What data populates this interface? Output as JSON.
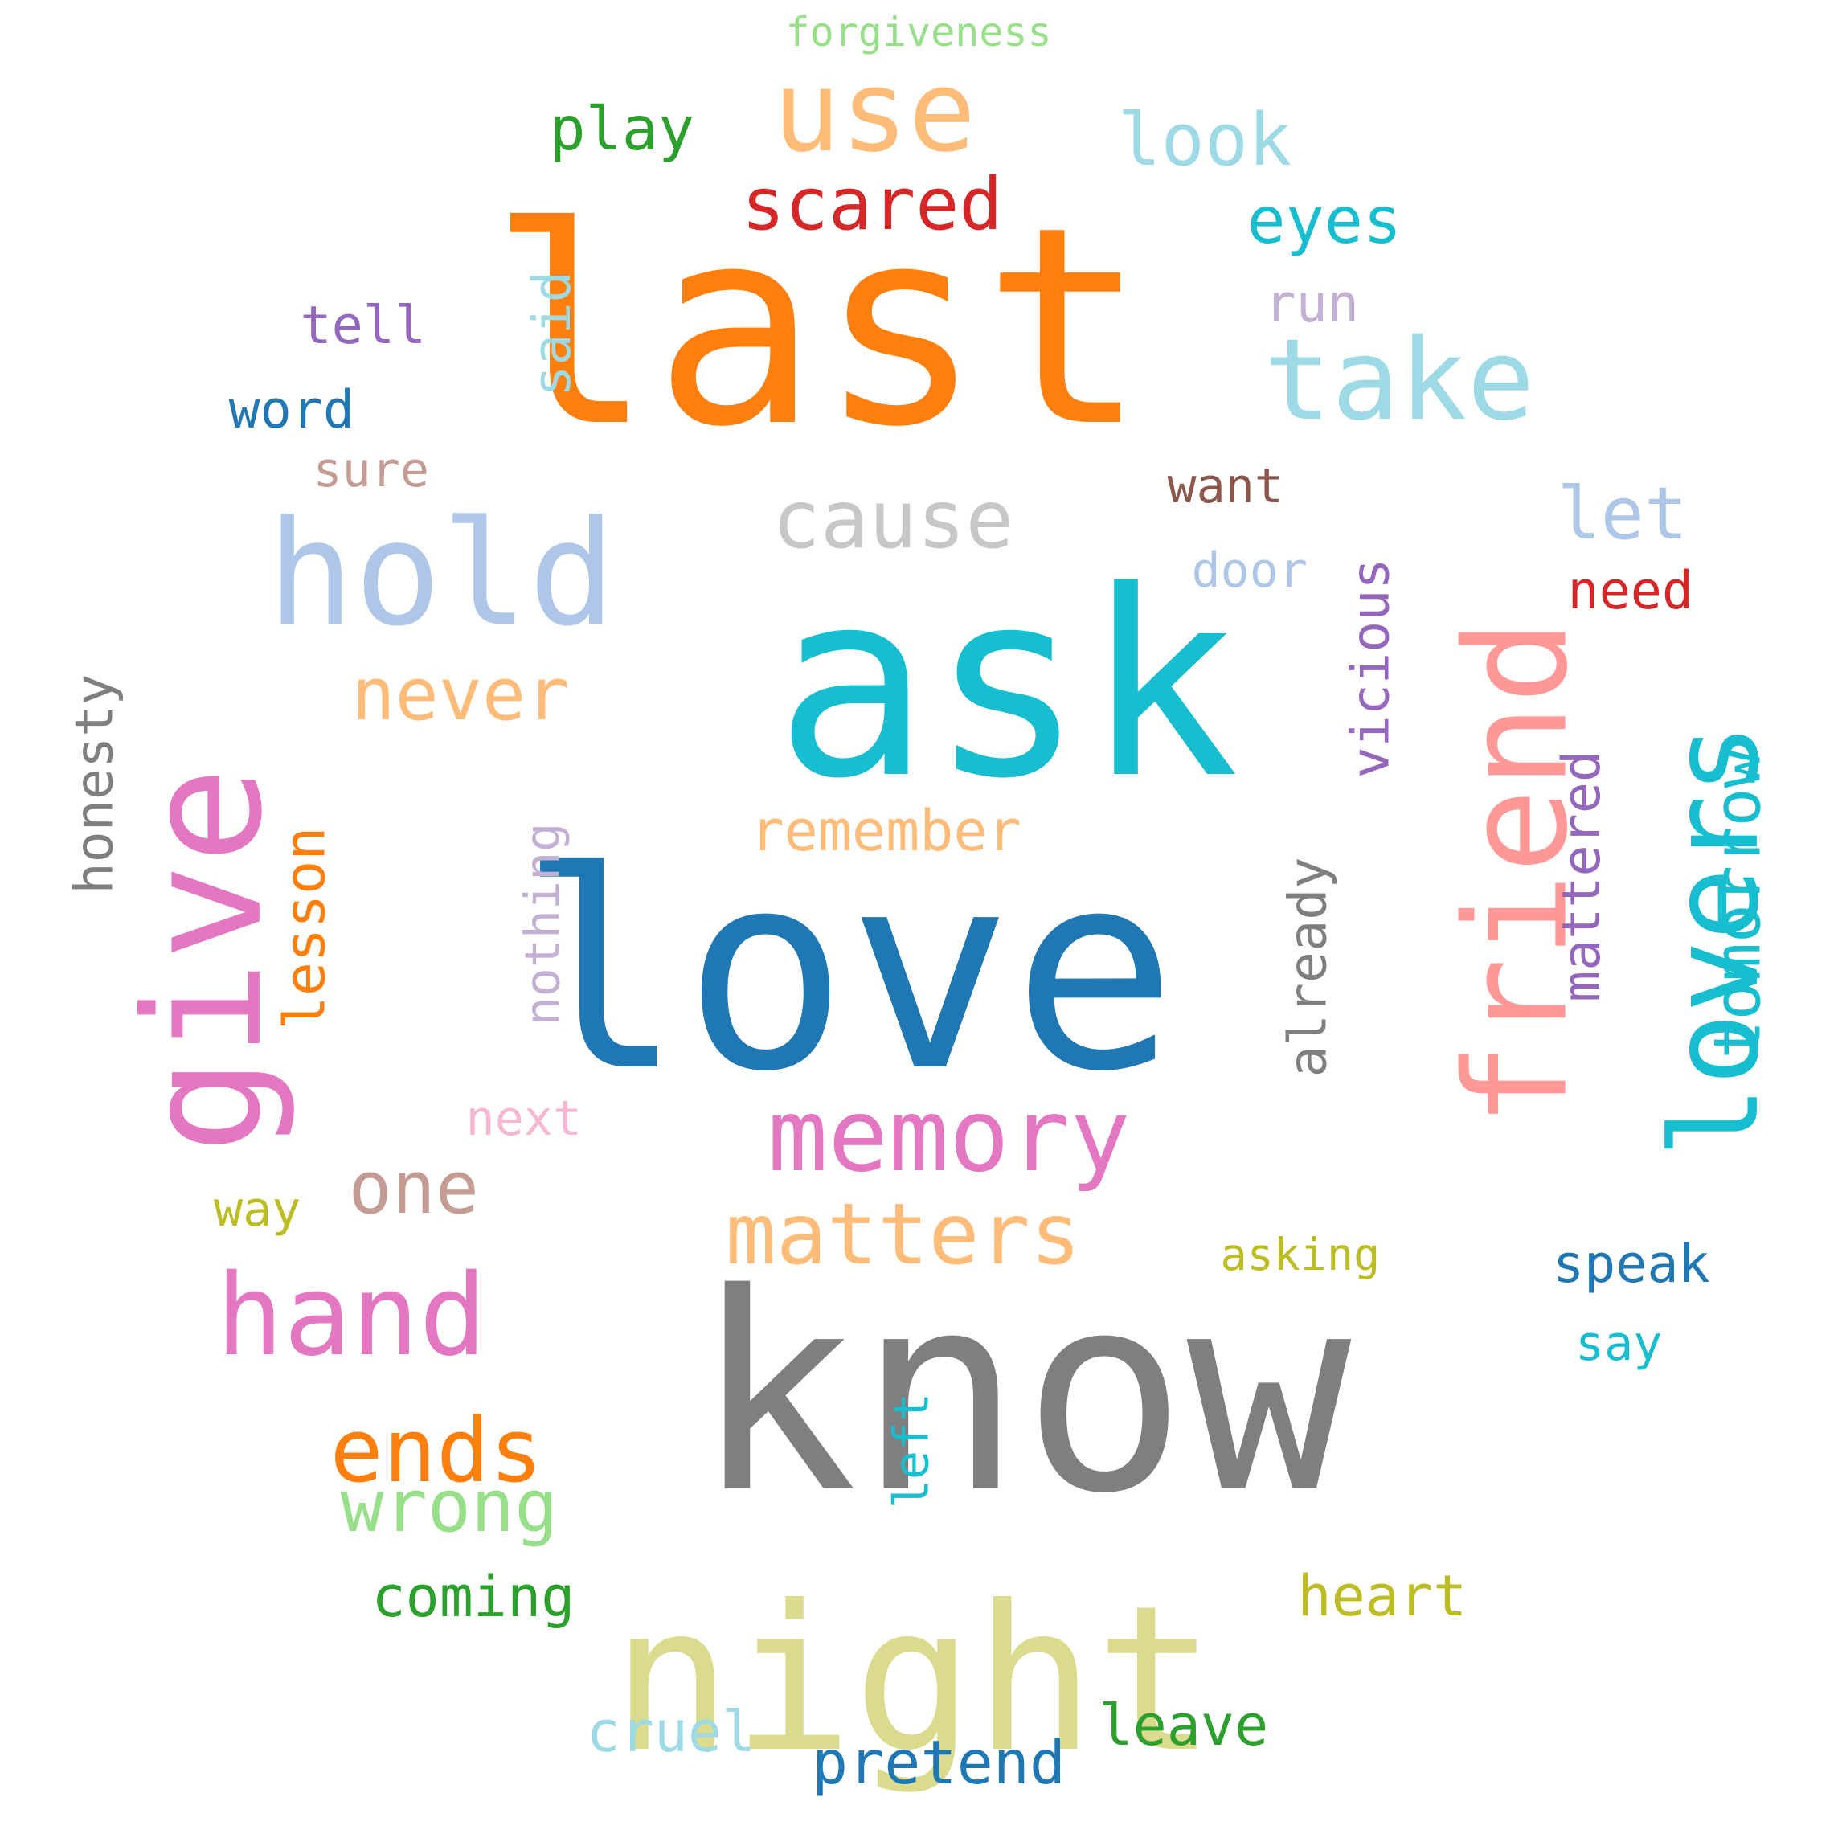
{
  "words": [
    {
      "text": "last",
      "color": "#ff7f0e"
    },
    {
      "text": "ask",
      "color": "#17becf"
    },
    {
      "text": "love",
      "color": "#1f77b4"
    },
    {
      "text": "know",
      "color": "#7f7f7f"
    },
    {
      "text": "night",
      "color": "#dbdb8d"
    },
    {
      "text": "give",
      "color": "#e377c2"
    },
    {
      "text": "friend",
      "color": "#ff9896"
    },
    {
      "text": "lovers",
      "color": "#17becf"
    },
    {
      "text": "hold",
      "color": "#aec7e8"
    },
    {
      "text": "use",
      "color": "#ffbb78"
    },
    {
      "text": "take",
      "color": "#9edae5"
    },
    {
      "text": "memory",
      "color": "#e377c2"
    },
    {
      "text": "hand",
      "color": "#e377c2"
    },
    {
      "text": "matters",
      "color": "#ffbb78"
    },
    {
      "text": "cause",
      "color": "#c7c7c7"
    },
    {
      "text": "never",
      "color": "#ffbb78"
    },
    {
      "text": "ends",
      "color": "#ff7f0e"
    },
    {
      "text": "wrong",
      "color": "#98df8a"
    },
    {
      "text": "look",
      "color": "#9edae5"
    },
    {
      "text": "scared",
      "color": "#d62728"
    },
    {
      "text": "eyes",
      "color": "#17becf"
    },
    {
      "text": "tomorrow",
      "color": "#17becf"
    },
    {
      "text": "remember",
      "color": "#ffbb78"
    },
    {
      "text": "honesty",
      "color": "#7f7f7f"
    },
    {
      "text": "lesson",
      "color": "#ff7f0e"
    },
    {
      "text": "nothing",
      "color": "#c5b0d5"
    },
    {
      "text": "already",
      "color": "#7f7f7f"
    },
    {
      "text": "vicious",
      "color": "#9467bd"
    },
    {
      "text": "mattered",
      "color": "#9467bd"
    },
    {
      "text": "one",
      "color": "#c49c94"
    },
    {
      "text": "pretend",
      "color": "#1f77b4"
    },
    {
      "text": "coming",
      "color": "#2ca02c"
    },
    {
      "text": "heart",
      "color": "#bcbd22"
    },
    {
      "text": "leave",
      "color": "#2ca02c"
    },
    {
      "text": "cruel",
      "color": "#9edae5"
    },
    {
      "text": "speak",
      "color": "#1f77b4"
    },
    {
      "text": "let",
      "color": "#aec7e8"
    },
    {
      "text": "need",
      "color": "#d62728"
    },
    {
      "text": "play",
      "color": "#2ca02c"
    },
    {
      "text": "tell",
      "color": "#9467bd"
    },
    {
      "text": "word",
      "color": "#1f77b4"
    },
    {
      "text": "said",
      "color": "#9edae5"
    },
    {
      "text": "sure",
      "color": "#c49c94"
    },
    {
      "text": "run",
      "color": "#c5b0d5"
    },
    {
      "text": "want",
      "color": "#8c564b"
    },
    {
      "text": "door",
      "color": "#aec7e8"
    },
    {
      "text": "next",
      "color": "#f7b6d2"
    },
    {
      "text": "way",
      "color": "#bcbd22"
    },
    {
      "text": "asking",
      "color": "#bcbd22"
    },
    {
      "text": "say",
      "color": "#17becf"
    },
    {
      "text": "left",
      "color": "#17becf"
    },
    {
      "text": "forgiveness",
      "color": "#98df8a"
    }
  ]
}
